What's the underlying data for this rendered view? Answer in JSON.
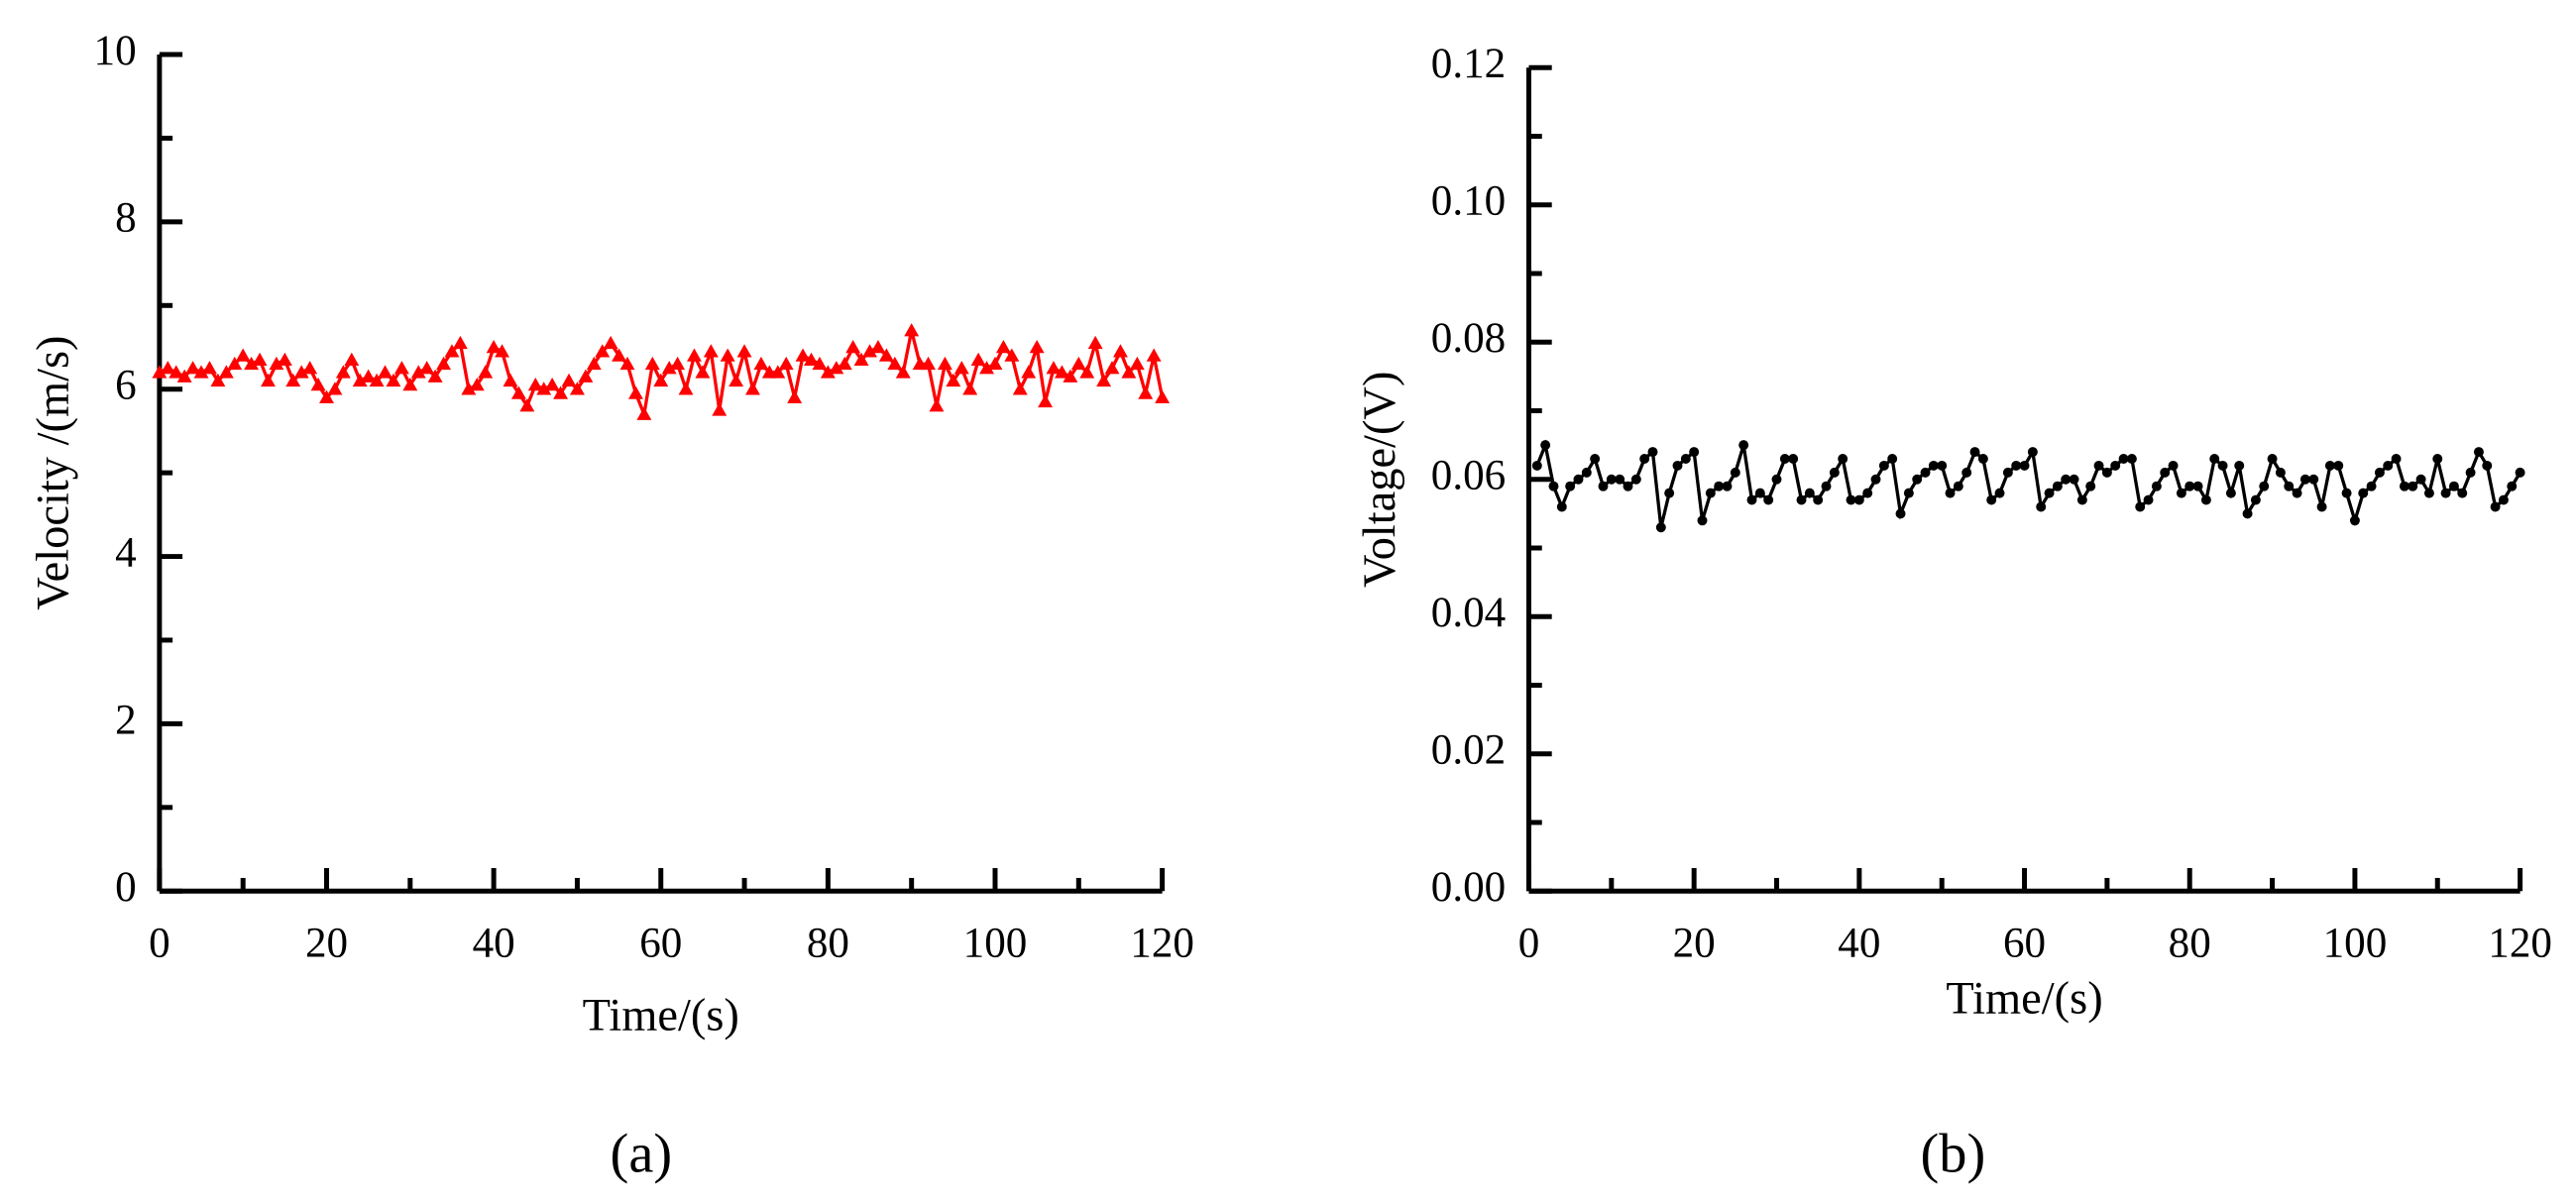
{
  "chart_data": [
    {
      "type": "line",
      "panel_label": "(a)",
      "xlabel": "Time/(s)",
      "ylabel": "Velocity /(m/s)",
      "color": "#ff0000",
      "marker": "triangle",
      "xlim": [
        0,
        120
      ],
      "xticks": [
        0,
        20,
        40,
        60,
        80,
        100,
        120
      ],
      "ylim": [
        0,
        10
      ],
      "yticks": [
        0,
        2,
        4,
        6,
        8,
        10
      ],
      "x": [
        0,
        1,
        2,
        3,
        4,
        5,
        6,
        7,
        8,
        9,
        10,
        11,
        12,
        13,
        14,
        15,
        16,
        17,
        18,
        19,
        20,
        21,
        22,
        23,
        24,
        25,
        26,
        27,
        28,
        29,
        30,
        31,
        32,
        33,
        34,
        35,
        36,
        37,
        38,
        39,
        40,
        41,
        42,
        43,
        44,
        45,
        46,
        47,
        48,
        49,
        50,
        51,
        52,
        53,
        54,
        55,
        56,
        57,
        58,
        59,
        60,
        61,
        62,
        63,
        64,
        65,
        66,
        67,
        68,
        69,
        70,
        71,
        72,
        73,
        74,
        75,
        76,
        77,
        78,
        79,
        80,
        81,
        82,
        83,
        84,
        85,
        86,
        87,
        88,
        89,
        90,
        91,
        92,
        93,
        94,
        95,
        96,
        97,
        98,
        99,
        100,
        101,
        102,
        103,
        104,
        105,
        106,
        107,
        108,
        109,
        110,
        111,
        112,
        113,
        114,
        115,
        116,
        117,
        118,
        119,
        120
      ],
      "values": [
        6.2,
        6.25,
        6.2,
        6.15,
        6.25,
        6.2,
        6.25,
        6.1,
        6.2,
        6.3,
        6.4,
        6.3,
        6.35,
        6.1,
        6.3,
        6.35,
        6.1,
        6.2,
        6.25,
        6.05,
        5.9,
        6.0,
        6.2,
        6.35,
        6.1,
        6.15,
        6.1,
        6.2,
        6.1,
        6.25,
        6.05,
        6.2,
        6.25,
        6.15,
        6.3,
        6.45,
        6.55,
        6.0,
        6.05,
        6.2,
        6.5,
        6.45,
        6.1,
        5.95,
        5.8,
        6.05,
        6.0,
        6.05,
        5.95,
        6.1,
        6.0,
        6.15,
        6.3,
        6.45,
        6.55,
        6.4,
        6.3,
        5.95,
        5.7,
        6.3,
        6.1,
        6.25,
        6.3,
        6.0,
        6.4,
        6.2,
        6.45,
        5.75,
        6.4,
        6.1,
        6.45,
        6.0,
        6.3,
        6.2,
        6.2,
        6.3,
        5.9,
        6.4,
        6.35,
        6.3,
        6.2,
        6.25,
        6.3,
        6.5,
        6.35,
        6.45,
        6.5,
        6.4,
        6.3,
        6.2,
        6.7,
        6.3,
        6.3,
        5.8,
        6.3,
        6.1,
        6.25,
        6.0,
        6.35,
        6.25,
        6.3,
        6.5,
        6.4,
        6.0,
        6.2,
        6.5,
        5.85,
        6.25,
        6.2,
        6.15,
        6.3,
        6.2,
        6.55,
        6.1,
        6.25,
        6.45,
        6.2,
        6.3,
        5.95,
        6.4,
        5.9
      ]
    },
    {
      "type": "line",
      "panel_label": "(b)",
      "xlabel": "Time/(s)",
      "ylabel": "Voltage/(V)",
      "color": "#000000",
      "marker": "circle",
      "xlim": [
        0,
        120
      ],
      "xticks": [
        0,
        20,
        40,
        60,
        80,
        100,
        120
      ],
      "ylim": [
        0,
        0.12
      ],
      "yticks": [
        {
          "value": 0,
          "label": "0.00"
        },
        0.02,
        0.04,
        0.06,
        0.08,
        {
          "value": 0.1,
          "label": "0.10"
        },
        0.12
      ],
      "x": [
        1,
        2,
        3,
        4,
        5,
        6,
        7,
        8,
        9,
        10,
        11,
        12,
        13,
        14,
        15,
        16,
        17,
        18,
        19,
        20,
        21,
        22,
        23,
        24,
        25,
        26,
        27,
        28,
        29,
        30,
        31,
        32,
        33,
        34,
        35,
        36,
        37,
        38,
        39,
        40,
        41,
        42,
        43,
        44,
        45,
        46,
        47,
        48,
        49,
        50,
        51,
        52,
        53,
        54,
        55,
        56,
        57,
        58,
        59,
        60,
        61,
        62,
        63,
        64,
        65,
        66,
        67,
        68,
        69,
        70,
        71,
        72,
        73,
        74,
        75,
        76,
        77,
        78,
        79,
        80,
        81,
        82,
        83,
        84,
        85,
        86,
        87,
        88,
        89,
        90,
        91,
        92,
        93,
        94,
        95,
        96,
        97,
        98,
        99,
        100,
        101,
        102,
        103,
        104,
        105,
        106,
        107,
        108,
        109,
        110,
        111,
        112,
        113,
        114,
        115,
        116,
        117,
        118,
        119,
        120
      ],
      "values": [
        0.062,
        0.065,
        0.059,
        0.056,
        0.059,
        0.06,
        0.061,
        0.063,
        0.059,
        0.06,
        0.06,
        0.059,
        0.06,
        0.063,
        0.064,
        0.053,
        0.058,
        0.062,
        0.063,
        0.064,
        0.054,
        0.058,
        0.059,
        0.059,
        0.061,
        0.065,
        0.057,
        0.058,
        0.057,
        0.06,
        0.063,
        0.063,
        0.057,
        0.058,
        0.057,
        0.059,
        0.061,
        0.063,
        0.057,
        0.057,
        0.058,
        0.06,
        0.062,
        0.063,
        0.055,
        0.058,
        0.06,
        0.061,
        0.062,
        0.062,
        0.058,
        0.059,
        0.061,
        0.064,
        0.063,
        0.057,
        0.058,
        0.061,
        0.062,
        0.062,
        0.064,
        0.056,
        0.058,
        0.059,
        0.06,
        0.06,
        0.057,
        0.059,
        0.062,
        0.061,
        0.062,
        0.063,
        0.063,
        0.056,
        0.057,
        0.059,
        0.061,
        0.062,
        0.058,
        0.059,
        0.059,
        0.057,
        0.063,
        0.062,
        0.058,
        0.062,
        0.055,
        0.057,
        0.059,
        0.063,
        0.061,
        0.059,
        0.058,
        0.06,
        0.06,
        0.056,
        0.062,
        0.062,
        0.058,
        0.054,
        0.058,
        0.059,
        0.061,
        0.062,
        0.063,
        0.059,
        0.059,
        0.06,
        0.058,
        0.063,
        0.058,
        0.059,
        0.058,
        0.061,
        0.064,
        0.062,
        0.056,
        0.057,
        0.059,
        0.061
      ]
    }
  ]
}
